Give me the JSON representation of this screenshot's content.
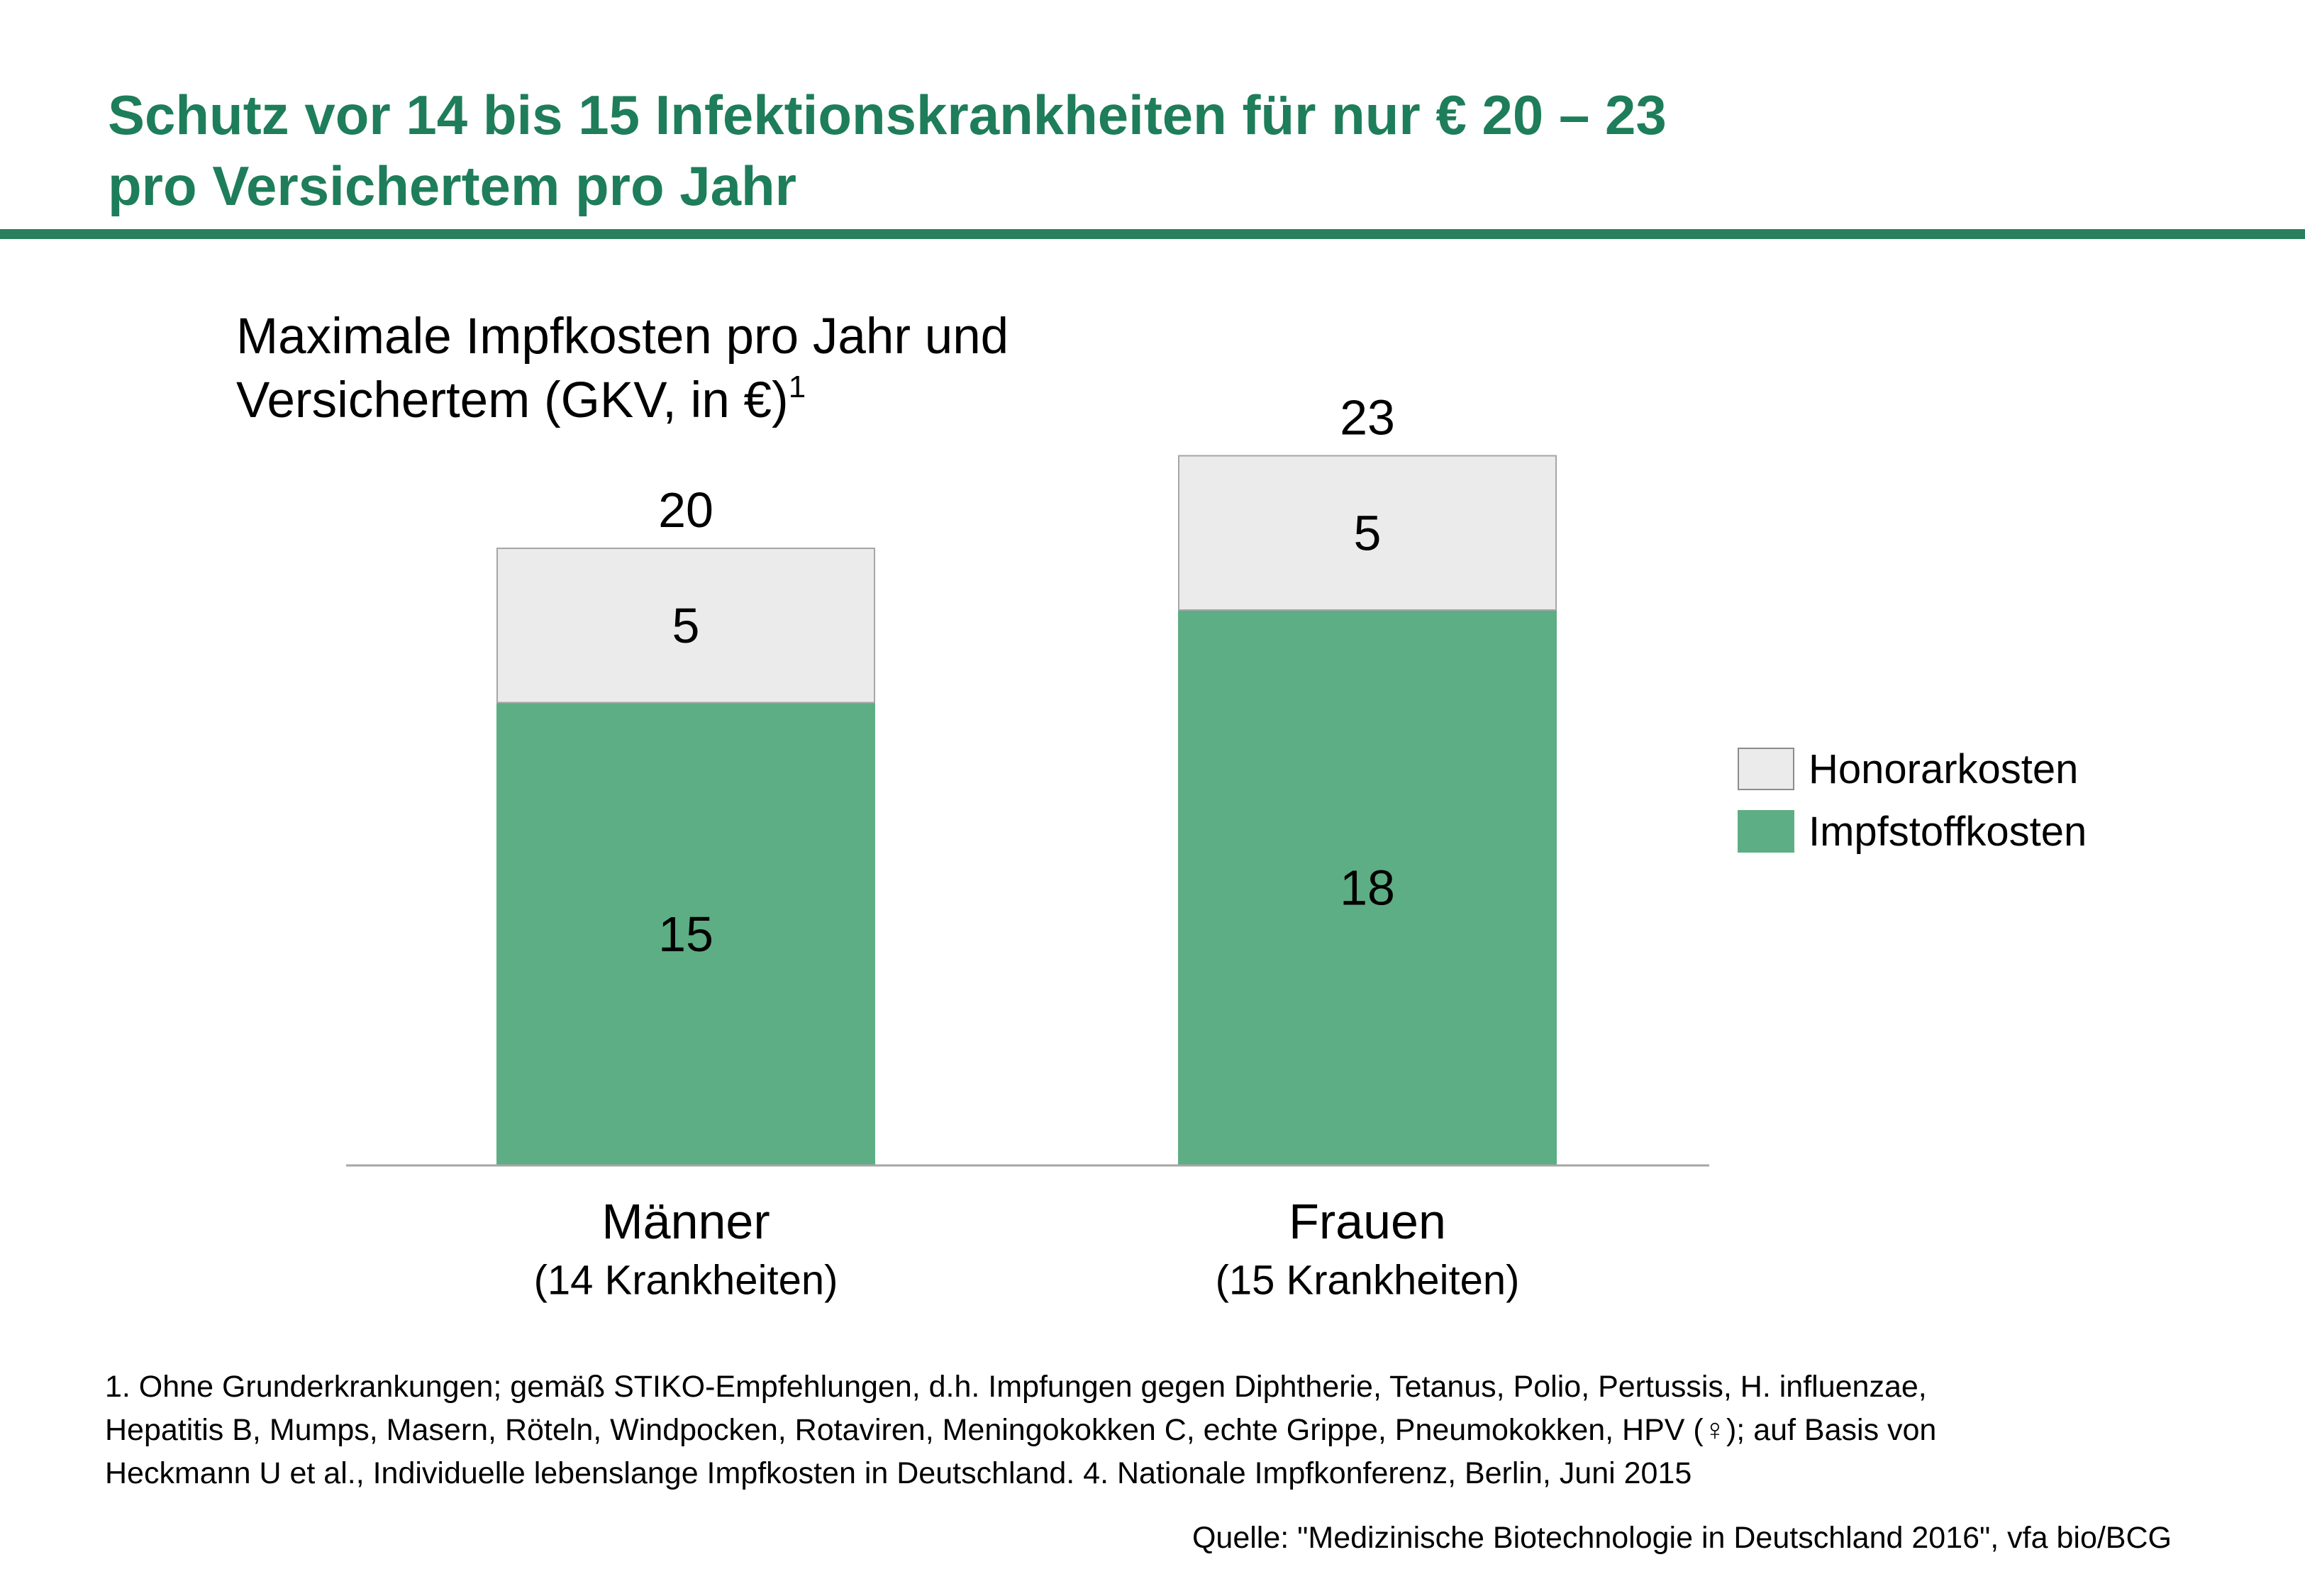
{
  "title": {
    "line1": "Schutz vor 14 bis 15 Infektionskrankheiten für nur € 20 – 23",
    "line2": "pro Versichertem pro Jahr"
  },
  "chart_data": {
    "type": "bar",
    "stacked": true,
    "title": "Maximale Impfkosten pro Jahr und Versichertem (GKV, in €)",
    "title_lines": [
      "Maximale Impfkosten pro Jahr und",
      "Versichertem (GKV, in €)"
    ],
    "title_footnote_marker": "1",
    "categories": [
      "Männer",
      "Frauen"
    ],
    "category_sublabels": [
      "(14 Krankheiten)",
      "(15 Krankheiten)"
    ],
    "series": [
      {
        "name": "Impfstoffkosten",
        "values": [
          15,
          18
        ],
        "color": "#5dae84"
      },
      {
        "name": "Honorarkosten",
        "values": [
          5,
          5
        ],
        "color": "#ebebeb"
      }
    ],
    "totals": [
      20,
      23
    ],
    "legend_order": [
      "Honorarkosten",
      "Impfstoffkosten"
    ],
    "legend_position": "right",
    "ylim": [
      0,
      23
    ],
    "grid": false,
    "xlabel": "",
    "ylabel": ""
  },
  "footnote": {
    "lines": [
      "1. Ohne Grunderkrankungen; gemäß STIKO-Empfehlungen, d.h. Impfungen gegen Diphtherie, Tetanus, Polio, Pertussis, H. influenzae,",
      "Hepatitis B, Mumps, Masern, Röteln, Windpocken, Rotaviren, Meningokokken C, echte Grippe, Pneumokokken, HPV (♀); auf Basis von",
      "Heckmann U et al., Individuelle lebenslange Impfkosten in Deutschland. 4. Nationale Impfkonferenz, Berlin, Juni 2015"
    ]
  },
  "source": "Quelle: \"Medizinische Biotechnologie in Deutschland 2016\", vfa bio/BCG",
  "colors": {
    "accent": "#1e7d5a",
    "rule": "#2a7f5e",
    "bar_green": "#5dae84",
    "bar_grey": "#ebebeb"
  }
}
